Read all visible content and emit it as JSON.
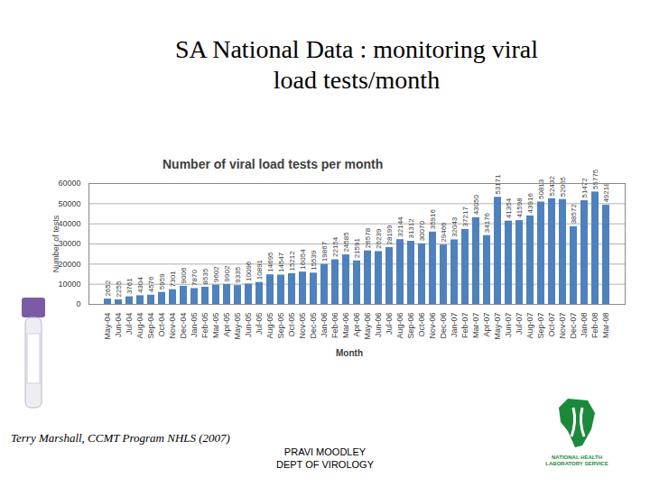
{
  "chart_data": {
    "type": "bar",
    "title": "Number of viral load tests per month",
    "x_label": "Month",
    "y_label": "Number of tests",
    "categories": [
      "May-04",
      "Jun-04",
      "Jul-04",
      "Aug-04",
      "Sep-04",
      "Oct-04",
      "Nov-04",
      "Dec-04",
      "Jan-05",
      "Feb-05",
      "Mar-05",
      "Apr-05",
      "May-05",
      "Jun-05",
      "Jul-05",
      "Aug-05",
      "Sep-05",
      "Oct-05",
      "Nov-05",
      "Dec-05",
      "Jan-06",
      "Feb-06",
      "Mar-06",
      "Apr-06",
      "May-06",
      "Jun-06",
      "Jul-06",
      "Aug-06",
      "Sep-06",
      "Oct-06",
      "Nov-06",
      "Dec-06",
      "Jan-07",
      "Feb-07",
      "Mar-07",
      "Apr-07",
      "May-07",
      "Jun-07",
      "Jul-07",
      "Aug-07",
      "Sep-07",
      "Oct-07",
      "Nov-07",
      "Dec-07",
      "Jan-08",
      "Feb-08",
      "Mar-08"
    ],
    "values": [
      2652,
      2255,
      3761,
      4304,
      4576,
      5959,
      7301,
      9006,
      7870,
      8535,
      9602,
      9902,
      9335,
      10096,
      10891,
      14695,
      14547,
      15212,
      16054,
      15539,
      19867,
      22154,
      24585,
      21591,
      26578,
      26239,
      28199,
      32144,
      31312,
      30070,
      35916,
      29466,
      32043,
      37217,
      43050,
      34176,
      53171,
      41354,
      41598,
      43916,
      50813,
      52432,
      52065,
      38572,
      51472,
      55775,
      49218
    ],
    "color": "#4f81bd",
    "ylim": [
      0,
      60000
    ],
    "yticks": [
      0,
      10000,
      20000,
      30000,
      40000,
      50000,
      60000
    ],
    "grid": true,
    "data_labels": true
  },
  "slide": {
    "title": "SA National Data : monitoring viral load tests/month",
    "source": "Terry Marshall, CCMT Program NHLS (2007)",
    "author": "PRAVI MOODLEY",
    "department": "DEPT OF VIROLOGY",
    "logo": [
      "NATIONAL HEALTH",
      "LABORATORY SERVICE"
    ]
  }
}
